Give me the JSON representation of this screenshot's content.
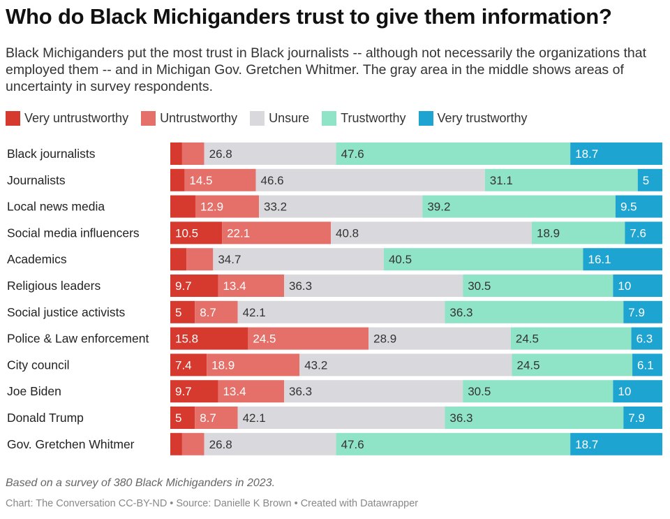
{
  "title": "Who do Black Michiganders trust to give them information?",
  "subtitle": "Black Michiganders put the most trust in Black journalists -- although not necessarily the organizations that employed them -- and in Michigan Gov. Gretchen Whitmer. The gray area in the middle shows areas of uncertainty in survey respondents.",
  "note": "Based on a survey of 380 Black Michiganders in 2023.",
  "credit": {
    "chart": "Chart: The Conversation CC-BY-ND",
    "source": "Source: Danielle K Brown",
    "tool": "Created with Datawrapper",
    "separator": "•"
  },
  "chart_data": {
    "type": "bar",
    "stacked": true,
    "orientation": "horizontal",
    "normalized_to": 100,
    "legend_position": "top",
    "categories": [
      "Black journalists",
      "Journalists",
      "Local news media",
      "Social media influencers",
      "Academics",
      "Religious leaders",
      "Social justice activists",
      "Police & Law enforcement",
      "City council",
      "Joe Biden",
      "Donald Trump",
      "Gov. Gretchen Whitmer"
    ],
    "series": [
      {
        "name": "Very untrustworthy",
        "color": "#d63a2f",
        "label_color": "#ffffff",
        "values": [
          2.4,
          2.9,
          5.1,
          10.5,
          3.3,
          9.7,
          5,
          15.8,
          7.4,
          9.7,
          5,
          2.4
        ],
        "labels": [
          "",
          "",
          "",
          "10.5",
          "",
          "9.7",
          "5",
          "15.8",
          "7.4",
          "9.7",
          "5",
          ""
        ]
      },
      {
        "name": "Untrustworthy",
        "color": "#e5706a",
        "label_color": "#ffffff",
        "values": [
          4.5,
          14.5,
          12.9,
          22.1,
          5.4,
          13.4,
          8.7,
          24.5,
          18.9,
          13.4,
          8.7,
          4.5
        ],
        "labels": [
          "",
          "14.5",
          "12.9",
          "22.1",
          "",
          "13.4",
          "8.7",
          "24.5",
          "18.9",
          "13.4",
          "8.7",
          ""
        ]
      },
      {
        "name": "Unsure",
        "color": "#d9d8dc",
        "label_color": "#333333",
        "values": [
          26.8,
          46.6,
          33.2,
          40.8,
          34.7,
          36.3,
          42.1,
          28.9,
          43.2,
          36.3,
          42.1,
          26.8
        ],
        "labels": [
          "26.8",
          "46.6",
          "33.2",
          "40.8",
          "34.7",
          "36.3",
          "42.1",
          "28.9",
          "43.2",
          "36.3",
          "42.1",
          "26.8"
        ]
      },
      {
        "name": "Trustworthy",
        "color": "#8fe3c6",
        "label_color": "#333333",
        "values": [
          47.6,
          31.1,
          39.2,
          18.9,
          40.5,
          30.5,
          36.3,
          24.5,
          24.5,
          30.5,
          36.3,
          47.6
        ],
        "labels": [
          "47.6",
          "31.1",
          "39.2",
          "18.9",
          "40.5",
          "30.5",
          "36.3",
          "24.5",
          "24.5",
          "30.5",
          "36.3",
          "47.6"
        ]
      },
      {
        "name": "Very trustworthy",
        "color": "#1ea4d1",
        "label_color": "#ffffff",
        "values": [
          18.7,
          5,
          9.5,
          7.6,
          16.1,
          10,
          7.9,
          6.3,
          6.1,
          10,
          7.9,
          18.7
        ],
        "labels": [
          "18.7",
          "5",
          "9.5",
          "7.6",
          "16.1",
          "10",
          "7.9",
          "6.3",
          "6.1",
          "10",
          "7.9",
          "18.7"
        ]
      }
    ]
  }
}
